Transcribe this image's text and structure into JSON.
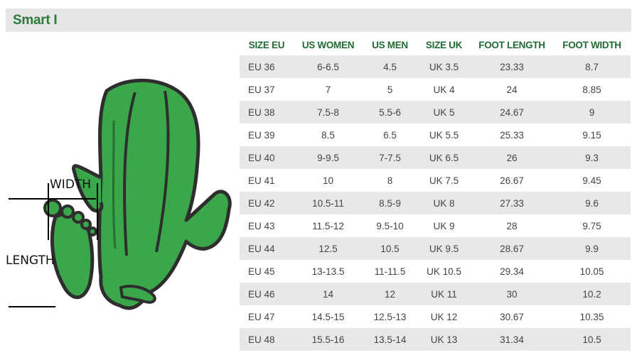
{
  "title": "Smart I",
  "figure": {
    "width_label": "WIDTH",
    "length_label": "LENGTH"
  },
  "table": {
    "headers": [
      "SIZE EU",
      "US WOMEN",
      "US MEN",
      "SIZE UK",
      "FOOT LENGTH",
      "FOOT WIDTH"
    ],
    "rows": [
      [
        "EU 36",
        "6-6.5",
        "4.5",
        "UK 3.5",
        "23.33",
        "8.7"
      ],
      [
        "EU 37",
        "7",
        "5",
        "UK 4",
        "24",
        "8.85"
      ],
      [
        "EU 38",
        "7.5-8",
        "5.5-6",
        "UK 5",
        "24.67",
        "9"
      ],
      [
        "EU 39",
        "8.5",
        "6.5",
        "UK 5.5",
        "25.33",
        "9.15"
      ],
      [
        "EU 40",
        "9-9.5",
        "7-7.5",
        "UK 6.5",
        "26",
        "9.3"
      ],
      [
        "EU 41",
        "10",
        "8",
        "UK 7.5",
        "26.67",
        "9.45"
      ],
      [
        "EU 42",
        "10.5-11",
        "8.5-9",
        "UK 8",
        "27.33",
        "9.6"
      ],
      [
        "EU 43",
        "11.5-12",
        "9.5-10",
        "UK 9",
        "28",
        "9.75"
      ],
      [
        "EU 44",
        "12.5",
        "10.5",
        "UK 9.5",
        "28.67",
        "9.9"
      ],
      [
        "EU 45",
        "13-13.5",
        "11-11.5",
        "UK 10.5",
        "29.34",
        "10.05"
      ],
      [
        "EU 46",
        "14",
        "12",
        "UK 11",
        "30",
        "10.2"
      ],
      [
        "EU 47",
        "14.5-15",
        "12.5-13",
        "UK 12",
        "30.67",
        "10.35"
      ],
      [
        "EU 48",
        "15.5-16",
        "13.5-14",
        "UK 13",
        "31.34",
        "10.5"
      ]
    ]
  },
  "colors": {
    "brand_green": "#2a7a3a",
    "mascot_green": "#3aa84a",
    "row_stripe": "#e8e8e8"
  },
  "icons": [
    "cactus-mascot-icon",
    "footprint-icon"
  ]
}
